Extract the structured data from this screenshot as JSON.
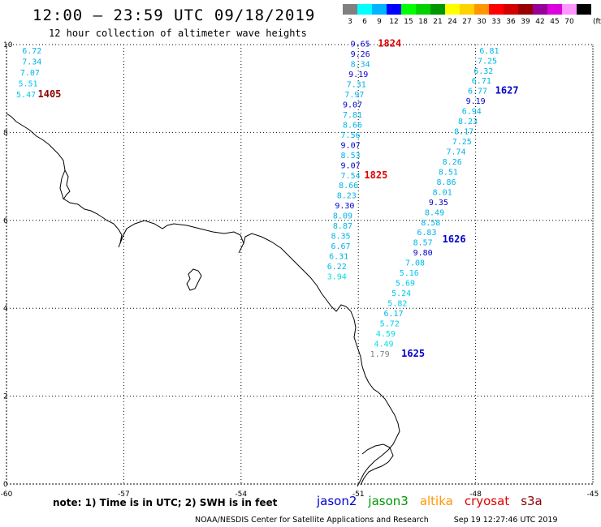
{
  "title": "12:00 – 23:59 UTC 09/18/2019",
  "subtitle": "12 hour collection of altimeter wave heights",
  "colorbar": {
    "unit": "(ft)",
    "bins": [
      {
        "label": "3",
        "color": "#808080"
      },
      {
        "label": "6",
        "color": "#00ffff"
      },
      {
        "label": "9",
        "color": "#00b4ff"
      },
      {
        "label": "12",
        "color": "#0000ff"
      },
      {
        "label": "15",
        "color": "#00ff00"
      },
      {
        "label": "18",
        "color": "#00d200"
      },
      {
        "label": "21",
        "color": "#009600"
      },
      {
        "label": "24",
        "color": "#ffff00"
      },
      {
        "label": "27",
        "color": "#ffd200"
      },
      {
        "label": "30",
        "color": "#ff9600"
      },
      {
        "label": "33",
        "color": "#ff0000"
      },
      {
        "label": "36",
        "color": "#d20000"
      },
      {
        "label": "39",
        "color": "#960000"
      },
      {
        "label": "42",
        "color": "#960096"
      },
      {
        "label": "45",
        "color": "#dc00dc"
      },
      {
        "label": "70",
        "color": "#ff96ff"
      },
      {
        "label": "",
        "color": "#000000"
      }
    ]
  },
  "axes": {
    "x_ticks": [
      "-60",
      "-57",
      "-54",
      "-51",
      "-48",
      "-45"
    ],
    "y_ticks": [
      "0",
      "2",
      "4",
      "6",
      "8",
      "10"
    ],
    "lon_range": [
      -60,
      -45
    ],
    "lat_range": [
      0,
      10
    ]
  },
  "passes": [
    {
      "time": "1405",
      "color": "#8b0000",
      "points": [
        {
          "lon": -59.6,
          "lat": 9.8,
          "value": "6.72",
          "color": "#00b4e6"
        },
        {
          "lon": -59.6,
          "lat": 9.55,
          "value": "7.34",
          "color": "#00b4e6"
        },
        {
          "lon": -59.65,
          "lat": 9.3,
          "value": "7.07",
          "color": "#00b4e6"
        },
        {
          "lon": -59.7,
          "lat": 9.05,
          "value": "5.51",
          "color": "#00c8f0"
        },
        {
          "lon": -59.75,
          "lat": 8.8,
          "value": "5.47",
          "color": "#00c8f0"
        }
      ]
    },
    {
      "time": "1824",
      "color": "#e00000",
      "points": [
        {
          "lon": -51.2,
          "lat": 9.95,
          "value": "9.65",
          "color": "#0000cc"
        },
        {
          "lon": -51.2,
          "lat": 9.72,
          "value": "9.26",
          "color": "#0000cc"
        },
        {
          "lon": -51.2,
          "lat": 9.49,
          "value": "8.34",
          "color": "#00b4e6"
        },
        {
          "lon": -51.25,
          "lat": 9.26,
          "value": "9.19",
          "color": "#0000cc"
        },
        {
          "lon": -51.3,
          "lat": 9.03,
          "value": "7.31",
          "color": "#00b4e6"
        },
        {
          "lon": -51.35,
          "lat": 8.8,
          "value": "7.97",
          "color": "#00b4e6"
        },
        {
          "lon": -51.4,
          "lat": 8.57,
          "value": "9.07",
          "color": "#0000cc"
        },
        {
          "lon": -51.4,
          "lat": 8.34,
          "value": "7.81",
          "color": "#00b4e6"
        },
        {
          "lon": -51.4,
          "lat": 8.11,
          "value": "8.66",
          "color": "#00b4e6"
        },
        {
          "lon": -51.45,
          "lat": 7.88,
          "value": "7.56",
          "color": "#00b4e6"
        }
      ]
    },
    {
      "time": "1825",
      "color": "#e00000",
      "points": [
        {
          "lon": -51.45,
          "lat": 7.65,
          "value": "9.07",
          "color": "#0000cc"
        },
        {
          "lon": -51.45,
          "lat": 7.42,
          "value": "8.53",
          "color": "#00b4e6"
        },
        {
          "lon": -51.45,
          "lat": 7.19,
          "value": "9.07",
          "color": "#0000cc"
        },
        {
          "lon": -51.45,
          "lat": 6.96,
          "value": "7.54",
          "color": "#00b4e6"
        },
        {
          "lon": -51.5,
          "lat": 6.73,
          "value": "8.66",
          "color": "#00b4e6"
        },
        {
          "lon": -51.55,
          "lat": 6.5,
          "value": "8.23",
          "color": "#00b4e6"
        },
        {
          "lon": -51.6,
          "lat": 6.27,
          "value": "9.30",
          "color": "#0000cc"
        },
        {
          "lon": -51.65,
          "lat": 6.04,
          "value": "8.09",
          "color": "#00b4e6"
        },
        {
          "lon": -51.65,
          "lat": 5.81,
          "value": "8.87",
          "color": "#00b4e6"
        },
        {
          "lon": -51.7,
          "lat": 5.58,
          "value": "8.35",
          "color": "#00b4e6"
        },
        {
          "lon": -51.7,
          "lat": 5.35,
          "value": "6.67",
          "color": "#00b4e6"
        },
        {
          "lon": -51.75,
          "lat": 5.12,
          "value": "6.31",
          "color": "#00b4e6"
        },
        {
          "lon": -51.8,
          "lat": 4.89,
          "value": "6.22",
          "color": "#00b4e6"
        },
        {
          "lon": -51.8,
          "lat": 4.66,
          "value": "3.94",
          "color": "#00e0e0"
        }
      ]
    },
    {
      "time": "1627",
      "color": "#0000cc",
      "points": [
        {
          "lon": -47.9,
          "lat": 9.8,
          "value": "6.81",
          "color": "#00b4e6"
        },
        {
          "lon": -47.95,
          "lat": 9.57,
          "value": "7.25",
          "color": "#00b4e6"
        },
        {
          "lon": -48.05,
          "lat": 9.34,
          "value": "6.32",
          "color": "#00b4e6"
        },
        {
          "lon": -48.1,
          "lat": 9.11,
          "value": "6.71",
          "color": "#00b4e6"
        },
        {
          "lon": -48.2,
          "lat": 8.88,
          "value": "6.77",
          "color": "#00b4e6"
        },
        {
          "lon": -48.25,
          "lat": 8.65,
          "value": "9.19",
          "color": "#0000cc"
        },
        {
          "lon": -48.35,
          "lat": 8.42,
          "value": "6.94",
          "color": "#00b4e6"
        },
        {
          "lon": -48.45,
          "lat": 8.19,
          "value": "8.23",
          "color": "#00b4e6"
        },
        {
          "lon": -48.55,
          "lat": 7.96,
          "value": "8.17",
          "color": "#00b4e6"
        },
        {
          "lon": -48.6,
          "lat": 7.73,
          "value": "7.25",
          "color": "#00b4e6"
        },
        {
          "lon": -48.75,
          "lat": 7.5,
          "value": "7.74",
          "color": "#00b4e6"
        }
      ]
    },
    {
      "time": "1626",
      "color": "#0000cc",
      "points": [
        {
          "lon": -48.85,
          "lat": 7.27,
          "value": "8.26",
          "color": "#00b4e6"
        },
        {
          "lon": -48.95,
          "lat": 7.04,
          "value": "8.51",
          "color": "#00b4e6"
        },
        {
          "lon": -49.0,
          "lat": 6.81,
          "value": "8.86",
          "color": "#00b4e6"
        },
        {
          "lon": -49.1,
          "lat": 6.58,
          "value": "8.01",
          "color": "#00b4e6"
        },
        {
          "lon": -49.2,
          "lat": 6.35,
          "value": "9.35",
          "color": "#0000cc"
        },
        {
          "lon": -49.3,
          "lat": 6.12,
          "value": "8.49",
          "color": "#00b4e6"
        },
        {
          "lon": -49.4,
          "lat": 5.89,
          "value": "8.58",
          "color": "#00b4e6"
        },
        {
          "lon": -49.5,
          "lat": 5.66,
          "value": "6.83",
          "color": "#00b4e6"
        },
        {
          "lon": -49.6,
          "lat": 5.43,
          "value": "8.57",
          "color": "#00b4e6"
        },
        {
          "lon": -49.6,
          "lat": 5.2,
          "value": "9.80",
          "color": "#0000cc"
        }
      ]
    },
    {
      "time": "1625",
      "color": "#0000cc",
      "points": [
        {
          "lon": -49.8,
          "lat": 4.97,
          "value": "7.08",
          "color": "#00b4e6"
        },
        {
          "lon": -49.95,
          "lat": 4.74,
          "value": "5.16",
          "color": "#00c8f0"
        },
        {
          "lon": -50.05,
          "lat": 4.51,
          "value": "5.69",
          "color": "#00c8f0"
        },
        {
          "lon": -50.15,
          "lat": 4.28,
          "value": "5.24",
          "color": "#00c8f0"
        },
        {
          "lon": -50.25,
          "lat": 4.05,
          "value": "5.82",
          "color": "#00c8f0"
        },
        {
          "lon": -50.35,
          "lat": 3.82,
          "value": "6.17",
          "color": "#00b4e6"
        },
        {
          "lon": -50.45,
          "lat": 3.59,
          "value": "5.72",
          "color": "#00c8f0"
        },
        {
          "lon": -50.55,
          "lat": 3.36,
          "value": "4.59",
          "color": "#00e0e0"
        },
        {
          "lon": -50.6,
          "lat": 3.13,
          "value": "4.49",
          "color": "#00e0e0"
        },
        {
          "lon": -50.7,
          "lat": 2.9,
          "value": "1.79",
          "color": "#808080"
        }
      ]
    }
  ],
  "note": "note:  1) Time is in UTC;  2) SWH is in feet",
  "legend": [
    {
      "name": "jason2",
      "color": "#0000cc"
    },
    {
      "name": "jason3",
      "color": "#009600"
    },
    {
      "name": "altika",
      "color": "#ff9600"
    },
    {
      "name": "cryosat",
      "color": "#e00000"
    },
    {
      "name": "s3a",
      "color": "#8b0000"
    }
  ],
  "footer": {
    "agency": "NOAA/NESDIS Center for Satellite Applications and Research",
    "timestamp": "Sep 19 12:27:46 UTC 2019"
  }
}
